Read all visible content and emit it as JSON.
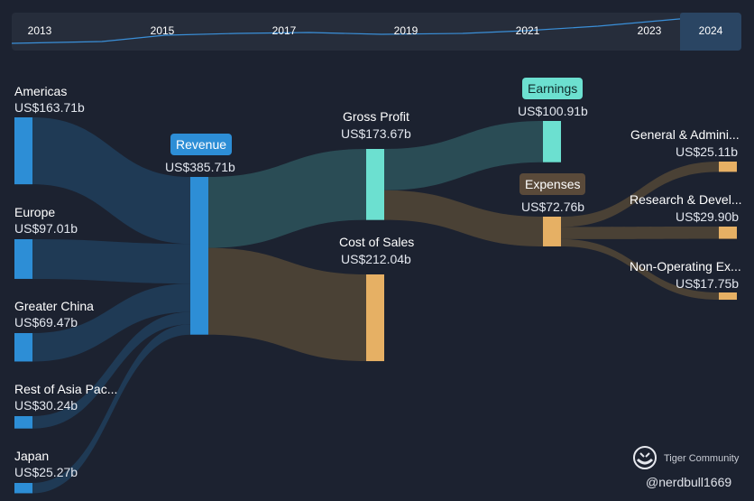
{
  "timeline": {
    "years": [
      "2013",
      "2015",
      "2017",
      "2019",
      "2021",
      "2023",
      "2024"
    ],
    "selected": "2024"
  },
  "chart_data": {
    "type": "sankey",
    "unit": "US$",
    "nodes": [
      {
        "id": "americas",
        "name": "Americas",
        "value": "US$163.71b",
        "amount": 163.71
      },
      {
        "id": "europe",
        "name": "Europe",
        "value": "US$97.01b",
        "amount": 97.01
      },
      {
        "id": "greater_china",
        "name": "Greater China",
        "value": "US$69.47b",
        "amount": 69.47
      },
      {
        "id": "rest_asia",
        "name": "Rest of Asia Pac...",
        "value": "US$30.24b",
        "amount": 30.24
      },
      {
        "id": "japan",
        "name": "Japan",
        "value": "US$25.27b",
        "amount": 25.27
      },
      {
        "id": "revenue",
        "name": "Revenue",
        "value": "US$385.71b",
        "amount": 385.71
      },
      {
        "id": "gross_profit",
        "name": "Gross Profit",
        "value": "US$173.67b",
        "amount": 173.67
      },
      {
        "id": "cost_of_sales",
        "name": "Cost of Sales",
        "value": "US$212.04b",
        "amount": 212.04
      },
      {
        "id": "earnings",
        "name": "Earnings",
        "value": "US$100.91b",
        "amount": 100.91
      },
      {
        "id": "expenses",
        "name": "Expenses",
        "value": "US$72.76b",
        "amount": 72.76
      },
      {
        "id": "ga",
        "name": "General & Admini...",
        "value": "US$25.11b",
        "amount": 25.11
      },
      {
        "id": "rd",
        "name": "Research & Devel...",
        "value": "US$29.90b",
        "amount": 29.9
      },
      {
        "id": "nonop",
        "name": "Non-Operating Ex...",
        "value": "US$17.75b",
        "amount": 17.75
      }
    ],
    "links": [
      {
        "source": "americas",
        "target": "revenue",
        "value": 163.71
      },
      {
        "source": "europe",
        "target": "revenue",
        "value": 97.01
      },
      {
        "source": "greater_china",
        "target": "revenue",
        "value": 69.47
      },
      {
        "source": "rest_asia",
        "target": "revenue",
        "value": 30.24
      },
      {
        "source": "japan",
        "target": "revenue",
        "value": 25.27
      },
      {
        "source": "revenue",
        "target": "gross_profit",
        "value": 173.67
      },
      {
        "source": "revenue",
        "target": "cost_of_sales",
        "value": 212.04
      },
      {
        "source": "gross_profit",
        "target": "earnings",
        "value": 100.91
      },
      {
        "source": "gross_profit",
        "target": "expenses",
        "value": 72.76
      },
      {
        "source": "expenses",
        "target": "ga",
        "value": 25.11
      },
      {
        "source": "expenses",
        "target": "rd",
        "value": 29.9
      },
      {
        "source": "expenses",
        "target": "nonop",
        "value": 17.75
      }
    ],
    "colors": {
      "regions": "#2d8ed6",
      "revenue": "#2d8ed6",
      "gross_profit": "#6ce0d0",
      "earnings": "#6ce0d0",
      "cost": "#e6b064",
      "expenses_pill": "#5a4a3a",
      "flow_blue": "#1f3a55",
      "flow_teal": "#2a4c55",
      "flow_brown": "#4a4135"
    }
  },
  "watermark": {
    "name": "Tiger Community",
    "user": "@nerdbull1669"
  }
}
